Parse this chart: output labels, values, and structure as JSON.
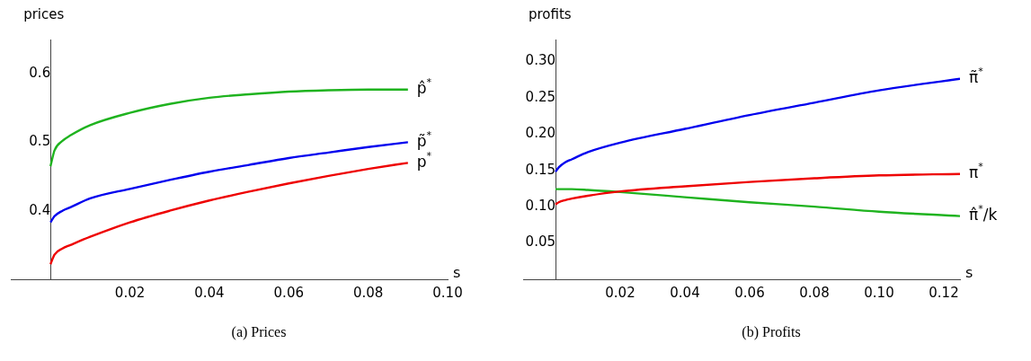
{
  "chart_data": [
    {
      "type": "line",
      "title": "(a) Prices",
      "ylabel": "prices",
      "xlabel": "s",
      "xlim": [
        -0.01,
        0.1
      ],
      "ylim": [
        0.3,
        0.65
      ],
      "xticks": [
        0.02,
        0.04,
        0.06,
        0.08,
        {
          "value": 0.1,
          "label": "0.10"
        }
      ],
      "yticks": [
        0.4,
        0.5,
        0.6
      ],
      "grid": false,
      "legend": false,
      "marker": "none",
      "series": [
        {
          "name": "p̂$^{*}$",
          "color": "#1fb31f",
          "x": [
            0,
            0.001,
            0.003,
            0.005,
            0.01,
            0.02,
            0.03,
            0.04,
            0.05,
            0.06,
            0.07,
            0.08,
            0.09
          ],
          "values": [
            0.465,
            0.488,
            0.502,
            0.51,
            0.525,
            0.543,
            0.556,
            0.565,
            0.57,
            0.574,
            0.576,
            0.577,
            0.577
          ]
        },
        {
          "name": "p̃$^{*}$",
          "color": "#0000ee",
          "x": [
            0,
            0.001,
            0.003,
            0.005,
            0.01,
            0.02,
            0.03,
            0.04,
            0.05,
            0.06,
            0.07,
            0.08,
            0.09
          ],
          "values": [
            0.383,
            0.392,
            0.4,
            0.405,
            0.418,
            0.432,
            0.445,
            0.457,
            0.467,
            0.477,
            0.485,
            0.493,
            0.5
          ]
        },
        {
          "name": "p$^{*}$",
          "color": "#ee0000",
          "x": [
            0,
            0.001,
            0.003,
            0.005,
            0.01,
            0.02,
            0.03,
            0.04,
            0.05,
            0.06,
            0.07,
            0.08,
            0.09
          ],
          "values": [
            0.322,
            0.336,
            0.345,
            0.35,
            0.362,
            0.383,
            0.4,
            0.415,
            0.428,
            0.44,
            0.451,
            0.461,
            0.47
          ]
        }
      ]
    },
    {
      "type": "line",
      "title": "(b) Profits",
      "ylabel": "profits",
      "xlabel": "s",
      "xlim": [
        -0.01,
        0.125
      ],
      "ylim": [
        0,
        0.33
      ],
      "xticks": [
        0.02,
        0.04,
        0.06,
        0.08,
        {
          "value": 0.1,
          "label": "0.10"
        },
        0.12
      ],
      "yticks": [
        0.05,
        {
          "value": 0.1,
          "label": "0.10"
        },
        0.15,
        {
          "value": 0.2,
          "label": "0.20"
        },
        0.25,
        {
          "value": 0.3,
          "label": "0.30"
        }
      ],
      "grid": false,
      "legend": false,
      "marker": "none",
      "series": [
        {
          "name": "π̃$^{*}$",
          "color": "#0000ee",
          "x": [
            0,
            0.001,
            0.003,
            0.005,
            0.01,
            0.02,
            0.04,
            0.06,
            0.08,
            0.1,
            0.125
          ],
          "values": [
            0.148,
            0.154,
            0.161,
            0.165,
            0.175,
            0.188,
            0.207,
            0.226,
            0.243,
            0.26,
            0.276
          ]
        },
        {
          "name": "π$^{*}$",
          "color": "#ee0000",
          "x": [
            0,
            0.001,
            0.003,
            0.005,
            0.01,
            0.02,
            0.04,
            0.06,
            0.08,
            0.1,
            0.125
          ],
          "values": [
            0.103,
            0.106,
            0.109,
            0.111,
            0.115,
            0.121,
            0.128,
            0.134,
            0.139,
            0.143,
            0.145
          ]
        },
        {
          "name": "π̂$^{*}$/k",
          "color": "#1fb31f",
          "x": [
            0,
            0.005,
            0.01,
            0.02,
            0.04,
            0.06,
            0.08,
            0.1,
            0.125
          ],
          "values": [
            0.124,
            0.124,
            0.123,
            0.12,
            0.113,
            0.106,
            0.1,
            0.093,
            0.087
          ]
        }
      ]
    }
  ]
}
